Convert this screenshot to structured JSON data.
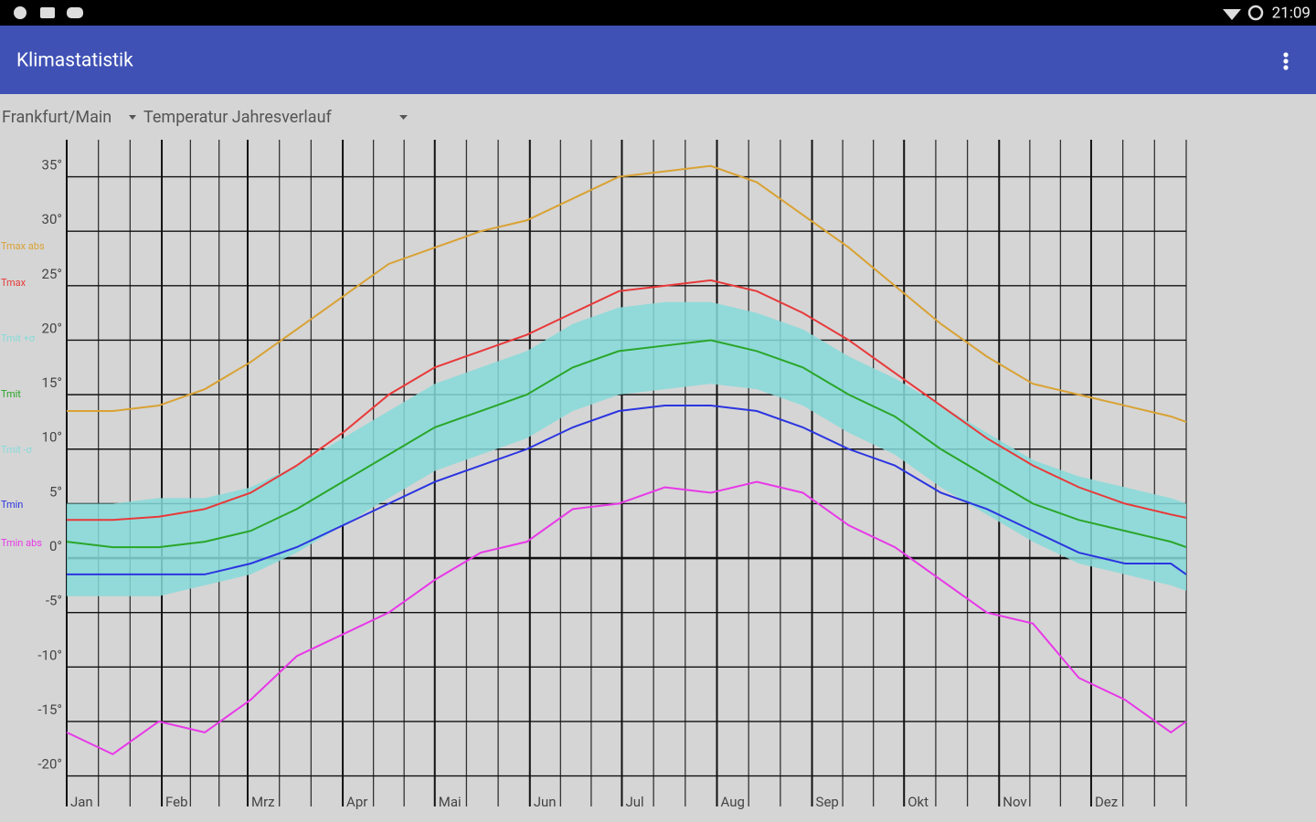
{
  "status_bar": {
    "time": "21:09"
  },
  "app_bar": {
    "title": "Klimastatistik"
  },
  "spinners": {
    "location": "Frankfurt/Main",
    "view": "Temperatur Jahresverlauf"
  },
  "chart_data": {
    "type": "line",
    "x": [
      0,
      15,
      30,
      45,
      60,
      75,
      90,
      105,
      120,
      135,
      150,
      165,
      180,
      195,
      210,
      225,
      240,
      255,
      270,
      285,
      300,
      315,
      330,
      345,
      360,
      365
    ],
    "xlim": [
      0,
      365
    ],
    "xticks": [
      {
        "value": 0,
        "label": "Jan"
      },
      {
        "value": 31,
        "label": "Feb"
      },
      {
        "value": 59,
        "label": "Mrz"
      },
      {
        "value": 90,
        "label": "Apr"
      },
      {
        "value": 120,
        "label": "Mai"
      },
      {
        "value": 151,
        "label": "Jun"
      },
      {
        "value": 181,
        "label": "Jul"
      },
      {
        "value": 212,
        "label": "Aug"
      },
      {
        "value": 243,
        "label": "Sep"
      },
      {
        "value": 273,
        "label": "Okt"
      },
      {
        "value": 304,
        "label": "Nov"
      },
      {
        "value": 334,
        "label": "Dez"
      }
    ],
    "ylim": [
      -22.8,
      38.4
    ],
    "yticks": [
      {
        "value": 35,
        "label": "35°"
      },
      {
        "value": 30,
        "label": "30°"
      },
      {
        "value": 25,
        "label": "25°"
      },
      {
        "value": 20,
        "label": "20°"
      },
      {
        "value": 15,
        "label": "15°"
      },
      {
        "value": 10,
        "label": "10°"
      },
      {
        "value": 5,
        "label": "5°"
      },
      {
        "value": 0,
        "label": "0°"
      },
      {
        "value": -5,
        "label": "-5°"
      },
      {
        "value": -10,
        "label": "-10°"
      },
      {
        "value": -15,
        "label": "-15°"
      },
      {
        "value": -20,
        "label": "-20°"
      }
    ],
    "grid": true,
    "legend": "left",
    "series": [
      {
        "name": "Tmax abs",
        "color": "#d9a234",
        "values": [
          13.5,
          13.5,
          14,
          15.5,
          18,
          21,
          24,
          27,
          28.5,
          30,
          31,
          33,
          35,
          35.5,
          36,
          34.5,
          31.5,
          28.5,
          25,
          21.5,
          18.5,
          16,
          15,
          14,
          13,
          12.5
        ]
      },
      {
        "name": "Tmax",
        "color": "#e8393a",
        "values": [
          3.5,
          3.5,
          3.8,
          4.5,
          6,
          8.5,
          11.5,
          15,
          17.5,
          19,
          20.5,
          22.5,
          24.5,
          25,
          25.5,
          24.5,
          22.5,
          20,
          17,
          14,
          11,
          8.5,
          6.5,
          5,
          4,
          3.7
        ]
      },
      {
        "name": "Tmit +σ",
        "color": "#86dbd9",
        "band": "upper",
        "values": [
          5,
          5,
          5.5,
          5.5,
          6.5,
          8.5,
          11,
          13.5,
          16,
          17.5,
          19,
          21.5,
          23,
          23.5,
          23.5,
          22.5,
          21,
          18.5,
          16.5,
          14,
          11.5,
          9,
          7.5,
          6.5,
          5.5,
          5
        ]
      },
      {
        "name": "Tmit",
        "color": "#2aa62a",
        "values": [
          1.5,
          1,
          1,
          1.5,
          2.5,
          4.5,
          7,
          9.5,
          12,
          13.5,
          15,
          17.5,
          19,
          19.5,
          20,
          19,
          17.5,
          15,
          13,
          10,
          7.5,
          5,
          3.5,
          2.5,
          1.5,
          1
        ]
      },
      {
        "name": "Tmit -σ",
        "color": "#86dbd9",
        "band": "lower",
        "values": [
          -3.5,
          -3.5,
          -3.5,
          -2.5,
          -1.5,
          0.5,
          3,
          5.5,
          8,
          9.5,
          11,
          13.5,
          15,
          15.5,
          16,
          15.5,
          14,
          11.5,
          9.5,
          6.5,
          4,
          1.5,
          -0.5,
          -1.5,
          -2.5,
          -3
        ]
      },
      {
        "name": "Tmin",
        "color": "#2b35e0",
        "values": [
          -1.5,
          -1.5,
          -1.5,
          -1.5,
          -0.5,
          1,
          3,
          5,
          7,
          8.5,
          10,
          12,
          13.5,
          14,
          14,
          13.5,
          12,
          10,
          8.5,
          6,
          4.5,
          2.5,
          0.5,
          -0.5,
          -0.5,
          -1.5
        ]
      },
      {
        "name": "Tmin abs",
        "color": "#e838e8",
        "values": [
          -16,
          -18,
          -15,
          -16,
          -13,
          -9,
          -7,
          -5,
          -2,
          0.5,
          1.5,
          4.5,
          5,
          6.5,
          6,
          7,
          6,
          3,
          1,
          -2,
          -5,
          -6,
          -11,
          -13,
          -16,
          -15
        ]
      }
    ]
  }
}
